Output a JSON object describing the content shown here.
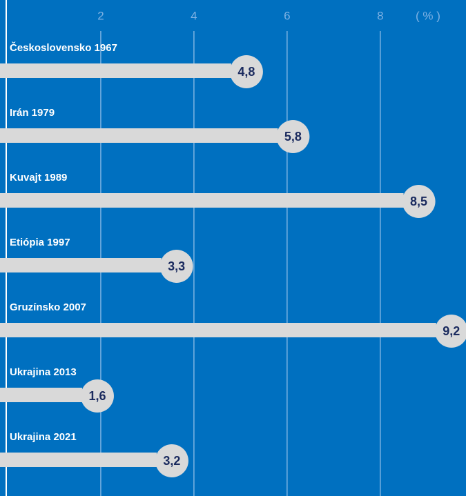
{
  "chart_data": {
    "type": "bar",
    "orientation": "horizontal",
    "categories": [
      "Československo 1967",
      "Irán 1979",
      "Kuvajt 1989",
      "Etiópia 1997",
      "Gruzínsko 2007",
      "Ukrajina 2013",
      "Ukrajina 2021"
    ],
    "values": [
      4.8,
      5.8,
      8.5,
      3.3,
      9.2,
      1.6,
      3.2
    ],
    "value_labels": [
      "4,8",
      "5,8",
      "8,5",
      "3,3",
      "9,2",
      "1,6",
      "3,2"
    ],
    "color": "#d9d9d9",
    "background": "#0070c0",
    "xlim": [
      0,
      9.84
    ],
    "xticks": [
      2,
      4,
      6,
      8
    ],
    "xlabel": "( % )",
    "grid": true
  }
}
